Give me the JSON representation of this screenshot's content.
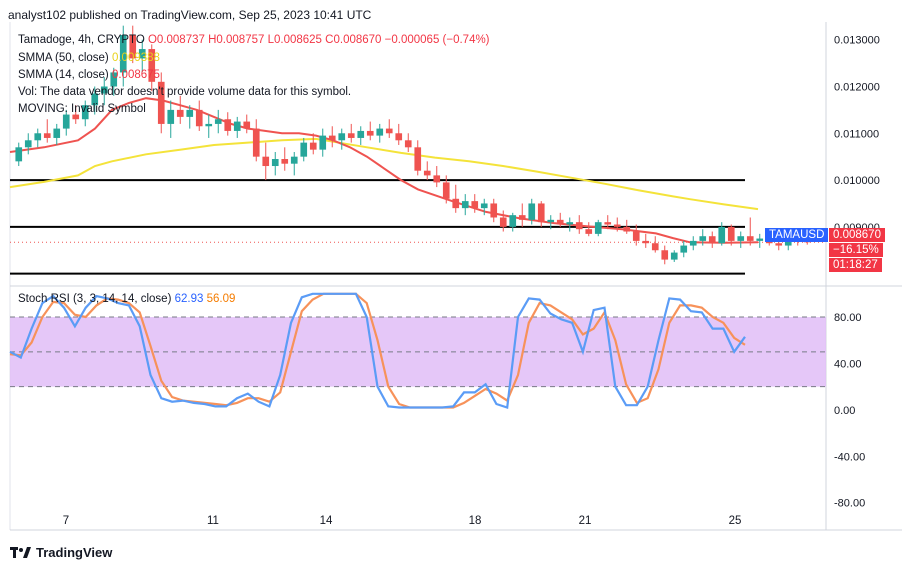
{
  "header": {
    "publisher_line": "analyst102 published on TradingView.com, Sep 25, 2023 10:41 UTC"
  },
  "legend": {
    "symbol": "Tamadoge, 4h, CRYPTO",
    "open": "O0.008737",
    "high": "H0.008757",
    "low": "L0.008625",
    "close": "C0.008670",
    "change": "−0.000065 (−0.74%)",
    "smma50_label": "SMMA (50, close)",
    "smma50_value": "0.009388",
    "smma14_label": "SMMA (14, close)",
    "smma14_value": "0.008675",
    "vol_note": "Vol: The data vendor doesn't provide volume data for this symbol.",
    "moving_note": "MOVING: Invalid Symbol"
  },
  "stoch_legend": {
    "label": "Stoch RSI (3, 3, 14, 14, close)",
    "k_value": "62.93",
    "d_value": "56.09"
  },
  "price_badge": {
    "ticker": "TAMAUSD",
    "price": "0.008670",
    "change": "−16.15%",
    "countdown": "01:18:27"
  },
  "brand": {
    "name": "TradingView"
  },
  "colors": {
    "up": "#26a69a",
    "down": "#ef5350",
    "smma50": "#f4e33a",
    "smma14": "#ef5350",
    "stoch_k": "#5b9cf6",
    "stoch_d": "#f7925a",
    "band": "#e1bdf7",
    "badge_blue": "#2962ff",
    "badge_red": "#f23645"
  },
  "chart_data": [
    {
      "type": "candlestick",
      "title": "Tamadoge, 4h, CRYPTO",
      "x_tick_labels": [
        "7",
        "11",
        "14",
        "18",
        "21",
        "25"
      ],
      "y_tick_labels": [
        "0.013000",
        "0.012000",
        "0.011000",
        "0.010000",
        "0.009000"
      ],
      "ylim": [
        0.0078,
        0.01325
      ],
      "last_price": 0.00867,
      "horizontal_levels": [
        0.01,
        0.009,
        0.008
      ],
      "candles": [
        [
          0.0104,
          0.0108,
          0.0103,
          0.0107
        ],
        [
          0.0107,
          0.011,
          0.01055,
          0.01085
        ],
        [
          0.01085,
          0.0111,
          0.0107,
          0.011
        ],
        [
          0.011,
          0.0113,
          0.0108,
          0.0109
        ],
        [
          0.0109,
          0.0112,
          0.01075,
          0.0111
        ],
        [
          0.0111,
          0.0115,
          0.01095,
          0.0114
        ],
        [
          0.0114,
          0.0116,
          0.0112,
          0.0113
        ],
        [
          0.0113,
          0.0117,
          0.01115,
          0.0116
        ],
        [
          0.0116,
          0.012,
          0.0114,
          0.01185
        ],
        [
          0.01185,
          0.0122,
          0.0116,
          0.012
        ],
        [
          0.012,
          0.0124,
          0.0118,
          0.0123
        ],
        [
          0.0123,
          0.0133,
          0.012,
          0.0131
        ],
        [
          0.0131,
          0.0133,
          0.0125,
          0.0126
        ],
        [
          0.0126,
          0.013,
          0.0123,
          0.0128
        ],
        [
          0.0128,
          0.0129,
          0.0119,
          0.0121
        ],
        [
          0.0121,
          0.0123,
          0.011,
          0.0112
        ],
        [
          0.0112,
          0.0117,
          0.0109,
          0.0115
        ],
        [
          0.0115,
          0.0118,
          0.0112,
          0.01135
        ],
        [
          0.01135,
          0.0116,
          0.0111,
          0.0115
        ],
        [
          0.0115,
          0.0117,
          0.01105,
          0.01115
        ],
        [
          0.01115,
          0.0114,
          0.0109,
          0.0112
        ],
        [
          0.0112,
          0.0115,
          0.011,
          0.0113
        ],
        [
          0.0113,
          0.01145,
          0.01095,
          0.01105
        ],
        [
          0.01105,
          0.01135,
          0.0109,
          0.01125
        ],
        [
          0.01125,
          0.0114,
          0.011,
          0.0111
        ],
        [
          0.0111,
          0.0113,
          0.0104,
          0.0105
        ],
        [
          0.0105,
          0.0108,
          0.01,
          0.0103
        ],
        [
          0.0103,
          0.0106,
          0.0101,
          0.01045
        ],
        [
          0.01045,
          0.0107,
          0.0102,
          0.01035
        ],
        [
          0.01035,
          0.0106,
          0.0101,
          0.0105
        ],
        [
          0.0105,
          0.0109,
          0.0104,
          0.0108
        ],
        [
          0.0108,
          0.011,
          0.01055,
          0.01065
        ],
        [
          0.01065,
          0.0111,
          0.0105,
          0.01095
        ],
        [
          0.01095,
          0.01115,
          0.0107,
          0.01085
        ],
        [
          0.01085,
          0.0111,
          0.01065,
          0.011
        ],
        [
          0.011,
          0.0112,
          0.0108,
          0.0109
        ],
        [
          0.0109,
          0.01115,
          0.01075,
          0.01105
        ],
        [
          0.01105,
          0.01125,
          0.01085,
          0.01095
        ],
        [
          0.01095,
          0.0112,
          0.0108,
          0.0111
        ],
        [
          0.0111,
          0.0113,
          0.0109,
          0.011
        ],
        [
          0.011,
          0.0112,
          0.01075,
          0.01085
        ],
        [
          0.01085,
          0.011,
          0.0106,
          0.0107
        ],
        [
          0.0107,
          0.01085,
          0.0101,
          0.0102
        ],
        [
          0.0102,
          0.0104,
          0.01,
          0.0101
        ],
        [
          0.0101,
          0.0103,
          0.00985,
          0.00995
        ],
        [
          0.00995,
          0.0101,
          0.0095,
          0.0096
        ],
        [
          0.0096,
          0.0099,
          0.0093,
          0.0094
        ],
        [
          0.0094,
          0.0097,
          0.00925,
          0.00955
        ],
        [
          0.00955,
          0.0097,
          0.0093,
          0.0094
        ],
        [
          0.0094,
          0.0096,
          0.00925,
          0.0095
        ],
        [
          0.0095,
          0.0096,
          0.0091,
          0.0092
        ],
        [
          0.0092,
          0.00935,
          0.0089,
          0.009
        ],
        [
          0.009,
          0.0093,
          0.0089,
          0.00925
        ],
        [
          0.00925,
          0.0095,
          0.009,
          0.00915
        ],
        [
          0.00915,
          0.0096,
          0.00905,
          0.0095
        ],
        [
          0.0095,
          0.00955,
          0.009,
          0.0091
        ],
        [
          0.0091,
          0.00925,
          0.00895,
          0.00915
        ],
        [
          0.00915,
          0.0093,
          0.009,
          0.00905
        ],
        [
          0.00905,
          0.0092,
          0.0089,
          0.0091
        ],
        [
          0.0091,
          0.00925,
          0.00885,
          0.00895
        ],
        [
          0.00895,
          0.0091,
          0.0088,
          0.00885
        ],
        [
          0.00885,
          0.00915,
          0.0088,
          0.0091
        ],
        [
          0.0091,
          0.00925,
          0.00895,
          0.00905
        ],
        [
          0.00905,
          0.0092,
          0.0089,
          0.009
        ],
        [
          0.009,
          0.00915,
          0.00885,
          0.0089
        ],
        [
          0.0089,
          0.00905,
          0.0086,
          0.0087
        ],
        [
          0.0087,
          0.00885,
          0.00855,
          0.00865
        ],
        [
          0.00865,
          0.0088,
          0.00845,
          0.0085
        ],
        [
          0.0085,
          0.0086,
          0.0082,
          0.0083
        ],
        [
          0.0083,
          0.0085,
          0.00825,
          0.00845
        ],
        [
          0.00845,
          0.0087,
          0.00835,
          0.0086
        ],
        [
          0.0086,
          0.0088,
          0.0085,
          0.0087
        ],
        [
          0.0087,
          0.00895,
          0.0086,
          0.0088
        ],
        [
          0.0088,
          0.0089,
          0.00855,
          0.00865
        ],
        [
          0.00865,
          0.0091,
          0.0086,
          0.009
        ],
        [
          0.009,
          0.00905,
          0.0086,
          0.0087
        ],
        [
          0.0087,
          0.0089,
          0.00855,
          0.0088
        ],
        [
          0.0088,
          0.0092,
          0.0086,
          0.0087
        ],
        [
          0.0087,
          0.00885,
          0.00855,
          0.00875
        ],
        [
          0.00875,
          0.00885,
          0.0086,
          0.00865
        ],
        [
          0.00865,
          0.0088,
          0.0085,
          0.0086
        ],
        [
          0.0086,
          0.00885,
          0.0085,
          0.0088
        ],
        [
          0.0088,
          0.0089,
          0.0086,
          0.00874
        ],
        [
          0.00874,
          0.00876,
          0.00862,
          0.00867
        ]
      ],
      "smma50": [
        [
          0,
          0.00985
        ],
        [
          10,
          0.00996
        ],
        [
          20,
          0.0101
        ],
        [
          25,
          0.0103
        ],
        [
          30,
          0.0104
        ],
        [
          40,
          0.01055
        ],
        [
          50,
          0.01065
        ],
        [
          60,
          0.01075
        ],
        [
          70,
          0.0108
        ],
        [
          80,
          0.01085
        ],
        [
          90,
          0.01088
        ],
        [
          95,
          0.01082
        ],
        [
          105,
          0.0107
        ],
        [
          115,
          0.01058
        ],
        [
          125,
          0.01048
        ],
        [
          135,
          0.0104
        ],
        [
          145,
          0.0103
        ],
        [
          155,
          0.01018
        ],
        [
          165,
          0.01005
        ],
        [
          175,
          0.00992
        ],
        [
          185,
          0.00978
        ],
        [
          195,
          0.00965
        ],
        [
          200,
          0.00959
        ],
        [
          210,
          0.00948
        ],
        [
          220,
          0.00938
        ]
      ],
      "smma14": [
        [
          0,
          0.0106
        ],
        [
          10,
          0.0107
        ],
        [
          20,
          0.01085
        ],
        [
          25,
          0.0111
        ],
        [
          30,
          0.0115
        ],
        [
          35,
          0.01165
        ],
        [
          40,
          0.01175
        ],
        [
          45,
          0.0117
        ],
        [
          50,
          0.0116
        ],
        [
          55,
          0.0115
        ],
        [
          60,
          0.01135
        ],
        [
          65,
          0.0112
        ],
        [
          70,
          0.0111
        ],
        [
          75,
          0.01105
        ],
        [
          80,
          0.011
        ],
        [
          85,
          0.011
        ],
        [
          90,
          0.01095
        ],
        [
          95,
          0.01085
        ],
        [
          100,
          0.0107
        ],
        [
          105,
          0.0105
        ],
        [
          110,
          0.01025
        ],
        [
          115,
          0.01
        ],
        [
          120,
          0.0098
        ],
        [
          130,
          0.00955
        ],
        [
          140,
          0.00932
        ],
        [
          150,
          0.00918
        ],
        [
          160,
          0.00908
        ],
        [
          170,
          0.00901
        ],
        [
          180,
          0.00895
        ],
        [
          190,
          0.00886
        ],
        [
          195,
          0.00876
        ],
        [
          200,
          0.00867
        ],
        [
          210,
          0.00866
        ],
        [
          220,
          0.00867
        ]
      ]
    },
    {
      "type": "line",
      "title": "Stoch RSI (3, 3, 14, 14, close)",
      "y_tick_labels": [
        "80.00",
        "40.00",
        "0.00",
        "-40.00",
        "-80.00"
      ],
      "ylim": [
        -82,
        105
      ],
      "band": [
        20,
        80
      ],
      "midline": 50,
      "series": [
        {
          "name": "K",
          "values": [
            50,
            45,
            70,
            92,
            98,
            88,
            72,
            88,
            98,
            96,
            92,
            90,
            72,
            30,
            10,
            7,
            8,
            6,
            5,
            3,
            3,
            10,
            14,
            7,
            3,
            30,
            75,
            97,
            100,
            100,
            100,
            100,
            100,
            80,
            20,
            3,
            2,
            2,
            2,
            2,
            2,
            3,
            15,
            15,
            22,
            5,
            2,
            80,
            96,
            95,
            83,
            78,
            75,
            50,
            86,
            88,
            20,
            4,
            4,
            20,
            60,
            96,
            95,
            85,
            84,
            70,
            70,
            50,
            62.93
          ]
        },
        {
          "name": "D",
          "values": [
            48,
            47,
            58,
            80,
            93,
            92,
            82,
            80,
            90,
            96,
            95,
            92,
            84,
            55,
            25,
            11,
            8,
            7,
            6,
            5,
            4,
            6,
            10,
            10,
            7,
            15,
            50,
            85,
            95,
            100,
            100,
            100,
            100,
            92,
            60,
            20,
            5,
            2,
            2,
            2,
            2,
            2,
            6,
            12,
            18,
            14,
            8,
            30,
            75,
            92,
            90,
            84,
            78,
            65,
            70,
            84,
            60,
            22,
            6,
            10,
            35,
            75,
            90,
            90,
            88,
            80,
            75,
            62,
            56.09
          ]
        }
      ]
    }
  ]
}
